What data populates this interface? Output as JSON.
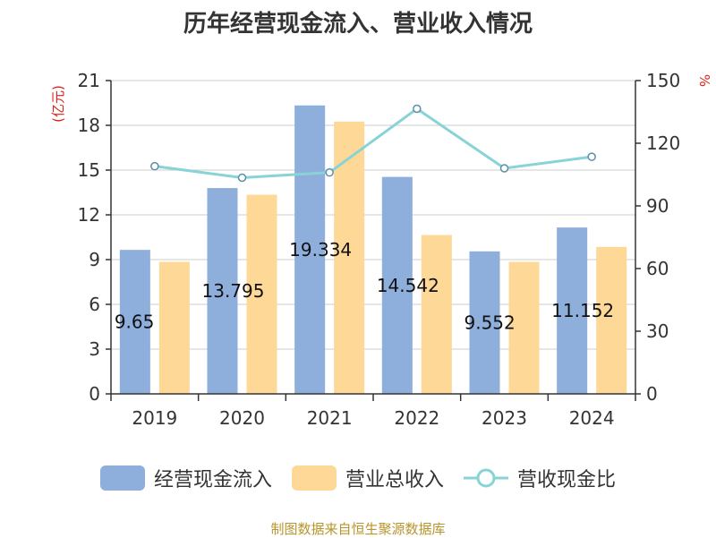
{
  "title": "历年经营现金流入、营业收入情况",
  "source": "制图数据来自恒生聚源数据库",
  "chart_data": {
    "type": "bar",
    "categories": [
      "2019",
      "2020",
      "2021",
      "2022",
      "2023",
      "2024"
    ],
    "series": [
      {
        "name": "经营现金流入",
        "type": "bar",
        "axis": "left",
        "color": "#8eaedb",
        "values": [
          9.65,
          13.795,
          19.334,
          14.542,
          9.552,
          11.152
        ],
        "data_labels": [
          "9.65",
          "13.795",
          "19.334",
          "14.542",
          "9.552",
          "11.152"
        ]
      },
      {
        "name": "营业总收入",
        "type": "bar",
        "axis": "left",
        "color": "#fed897",
        "values": [
          8.85,
          13.35,
          18.25,
          10.65,
          8.85,
          9.85
        ]
      },
      {
        "name": "营收现金比",
        "type": "line",
        "axis": "right",
        "color": "#87d3d5",
        "values": [
          109,
          103.5,
          106,
          136.5,
          108,
          113.5
        ]
      }
    ],
    "y_left": {
      "unit": "(亿元)",
      "range": [
        0,
        21
      ],
      "ticks": [
        0,
        3,
        6,
        9,
        12,
        15,
        18,
        21
      ]
    },
    "y_right": {
      "unit": "%",
      "range": [
        0,
        150
      ],
      "ticks": [
        0,
        30,
        60,
        90,
        120,
        150
      ]
    },
    "grid": true,
    "legend_position": "bottom"
  }
}
